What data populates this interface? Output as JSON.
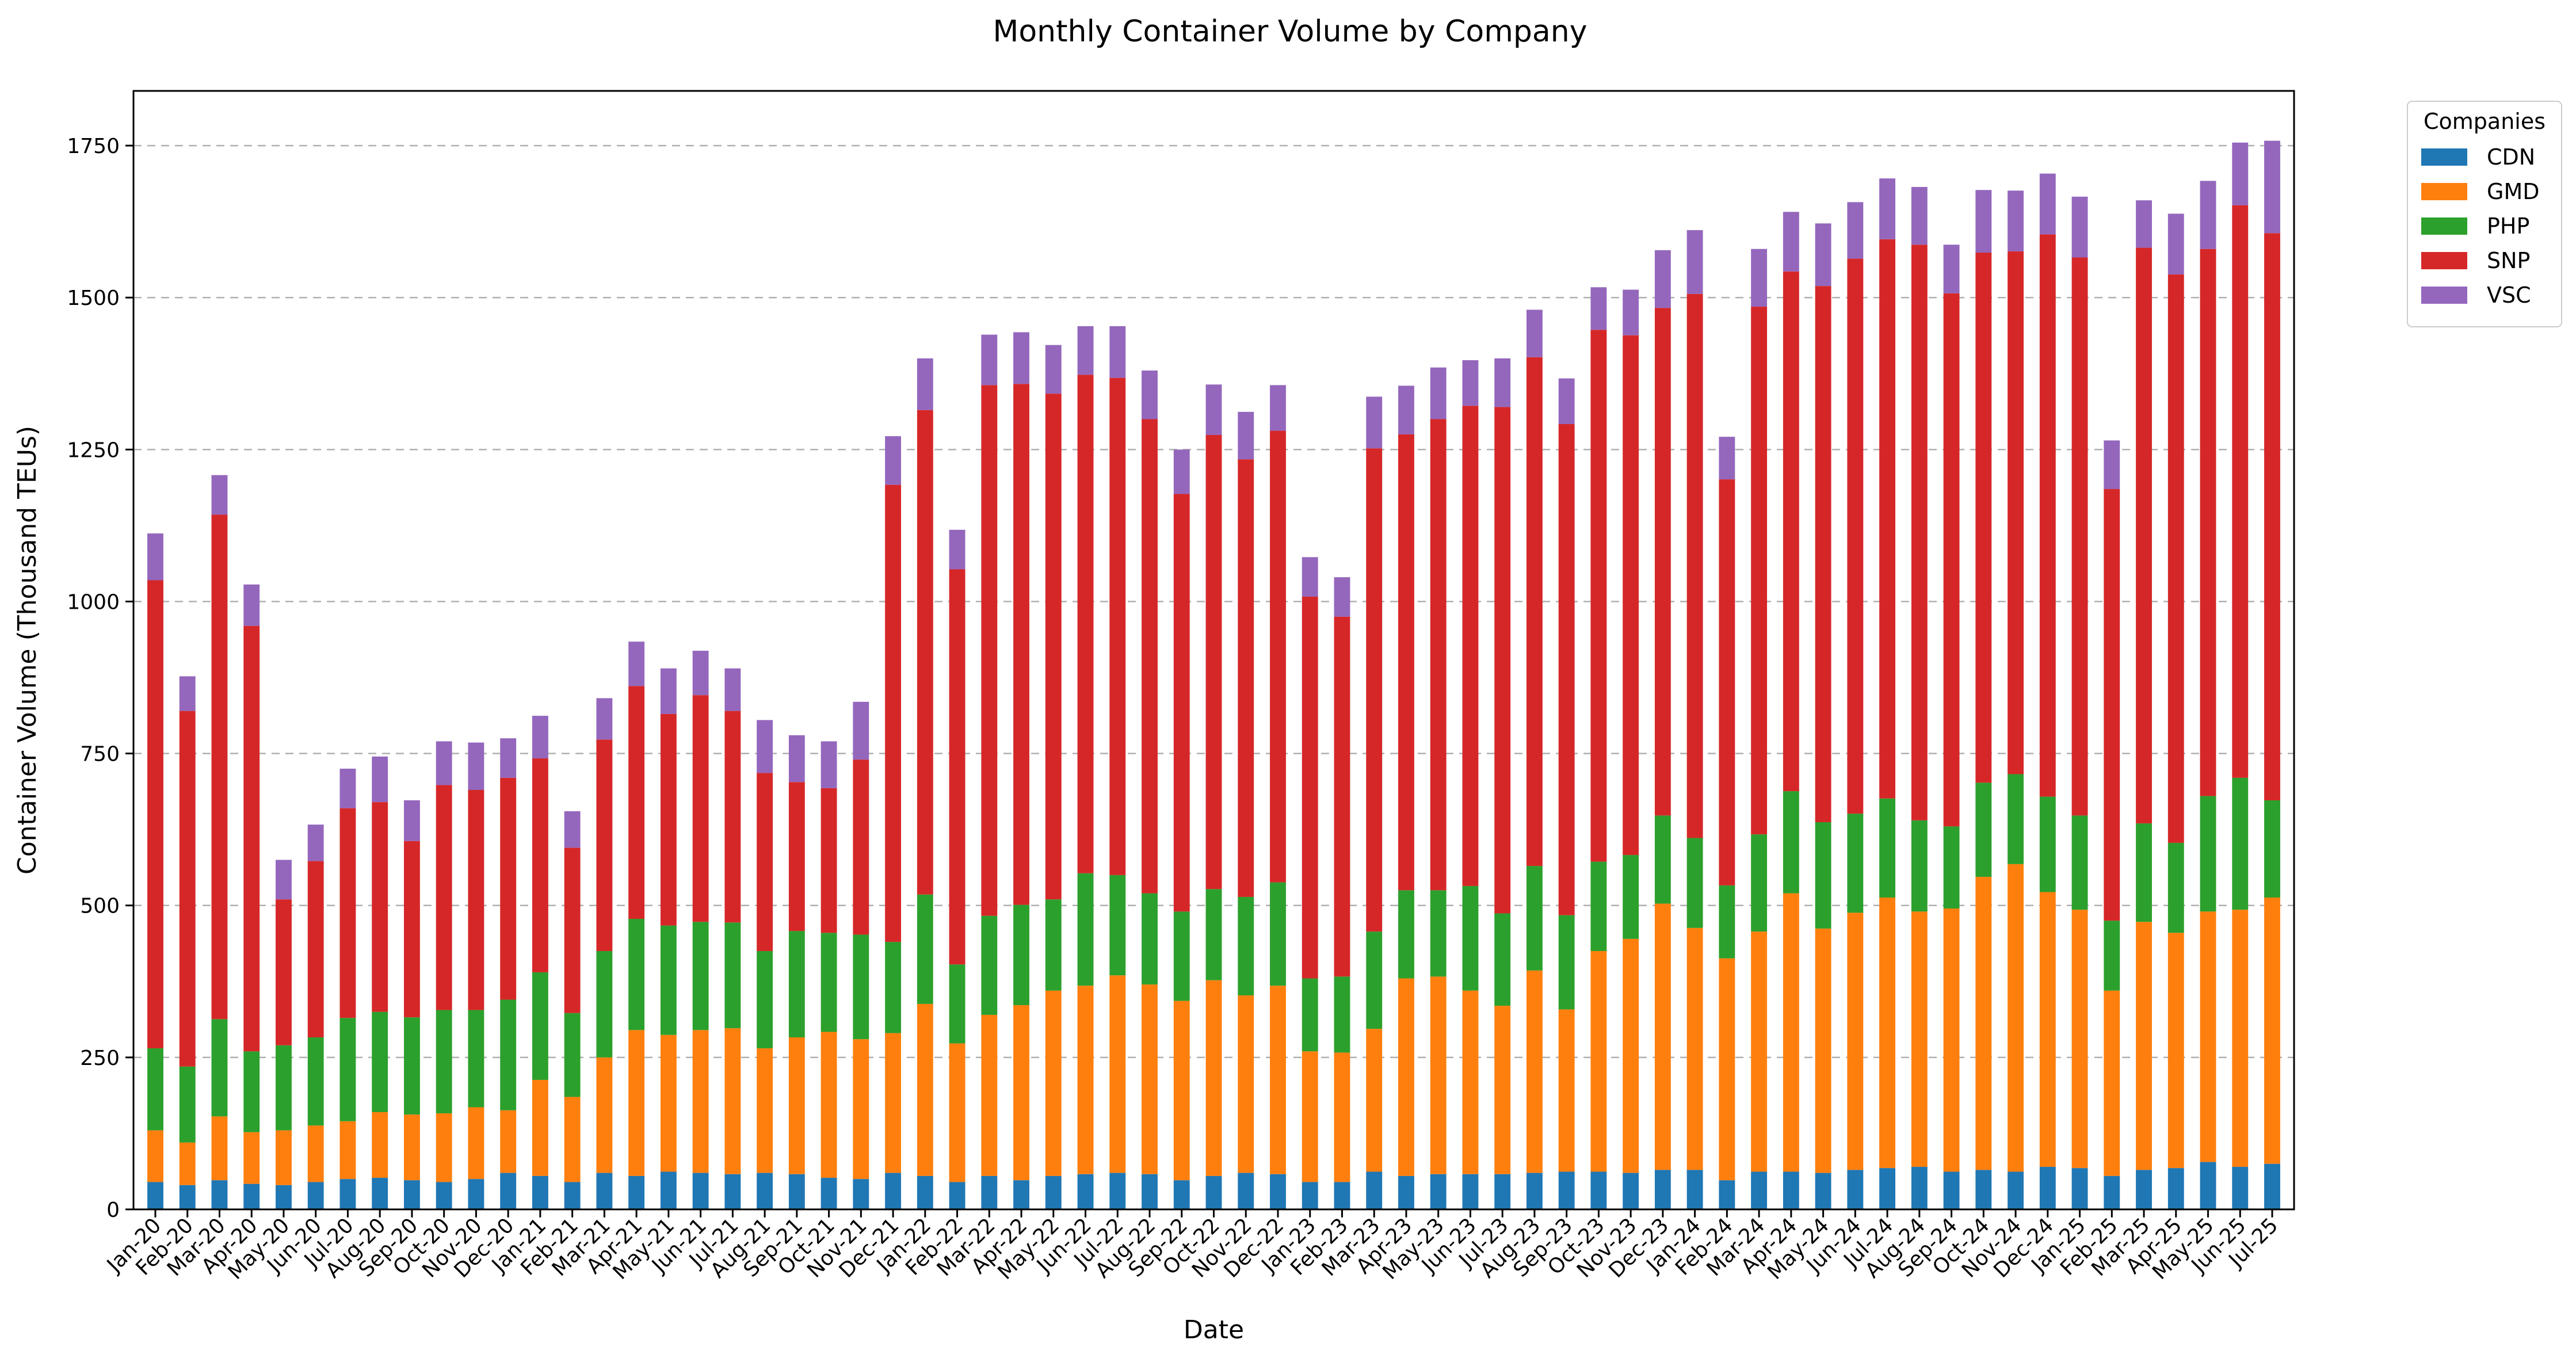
{
  "chart_data": {
    "type": "bar",
    "stacked": true,
    "title": "Monthly Container Volume by Company",
    "xlabel": "Date",
    "ylabel": "Container Volume (Thousand TEUs)",
    "ylim": [
      0,
      1840
    ],
    "yticks": [
      0,
      250,
      500,
      750,
      1000,
      1250,
      1500,
      1750
    ],
    "grid": "y-dashed",
    "legend": {
      "title": "Companies",
      "placement": "outside-top-right"
    },
    "categories": [
      "Jan-20",
      "Feb-20",
      "Mar-20",
      "Apr-20",
      "May-20",
      "Jun-20",
      "Jul-20",
      "Aug-20",
      "Sep-20",
      "Oct-20",
      "Nov-20",
      "Dec-20",
      "Jan-21",
      "Feb-21",
      "Mar-21",
      "Apr-21",
      "May-21",
      "Jun-21",
      "Jul-21",
      "Aug-21",
      "Sep-21",
      "Oct-21",
      "Nov-21",
      "Dec-21",
      "Jan-22",
      "Feb-22",
      "Mar-22",
      "Apr-22",
      "May-22",
      "Jun-22",
      "Jul-22",
      "Aug-22",
      "Sep-22",
      "Oct-22",
      "Nov-22",
      "Dec-22",
      "Jan-23",
      "Feb-23",
      "Mar-23",
      "Apr-23",
      "May-23",
      "Jun-23",
      "Jul-23",
      "Aug-23",
      "Sep-23",
      "Oct-23",
      "Nov-23",
      "Dec-23",
      "Jan-24",
      "Feb-24",
      "Mar-24",
      "Apr-24",
      "May-24",
      "Jun-24",
      "Jul-24",
      "Aug-24",
      "Sep-24",
      "Oct-24",
      "Nov-24",
      "Dec-24",
      "Jan-25",
      "Feb-25",
      "Mar-25",
      "Apr-25",
      "May-25",
      "Jun-25",
      "Jul-25"
    ],
    "series": [
      {
        "name": "CDN",
        "color": "#1f77b4",
        "values": [
          45,
          40,
          48,
          42,
          40,
          45,
          50,
          52,
          48,
          45,
          50,
          60,
          55,
          45,
          60,
          55,
          62,
          60,
          58,
          60,
          58,
          52,
          50,
          60,
          55,
          45,
          55,
          48,
          55,
          58,
          60,
          58,
          48,
          55,
          60,
          58,
          45,
          45,
          62,
          55,
          58,
          58,
          58,
          60,
          62,
          62,
          60,
          65,
          65,
          48,
          62,
          62,
          60,
          65,
          68,
          70,
          62,
          65,
          62,
          70,
          68,
          55,
          65,
          68,
          78,
          70,
          75
        ]
      },
      {
        "name": "GMD",
        "color": "#ff7f0e",
        "values": [
          85,
          70,
          105,
          85,
          90,
          93,
          95,
          108,
          108,
          113,
          118,
          103,
          158,
          140,
          190,
          240,
          225,
          235,
          240,
          205,
          225,
          240,
          230,
          230,
          283,
          228,
          265,
          288,
          305,
          310,
          325,
          312,
          295,
          322,
          292,
          310,
          215,
          213,
          235,
          325,
          325,
          302,
          277,
          333,
          267,
          363,
          385,
          438,
          398,
          365,
          395,
          458,
          402,
          423,
          445,
          420,
          433,
          482,
          506,
          452,
          425,
          305,
          408,
          387,
          412,
          423,
          438
        ]
      },
      {
        "name": "PHP",
        "color": "#2ca02c",
        "values": [
          135,
          125,
          160,
          133,
          140,
          145,
          170,
          165,
          160,
          170,
          160,
          182,
          177,
          138,
          175,
          183,
          180,
          178,
          174,
          160,
          175,
          163,
          172,
          150,
          180,
          130,
          163,
          165,
          150,
          185,
          165,
          150,
          147,
          150,
          162,
          170,
          120,
          125,
          160,
          145,
          142,
          172,
          152,
          172,
          155,
          147,
          138,
          145,
          148,
          120,
          160,
          168,
          175,
          163,
          163,
          150,
          135,
          155,
          148,
          157,
          155,
          115,
          162,
          148,
          190,
          217,
          160
        ]
      },
      {
        "name": "SNP",
        "color": "#d62728",
        "values": [
          770,
          585,
          830,
          700,
          240,
          290,
          345,
          345,
          290,
          370,
          362,
          365,
          352,
          272,
          348,
          383,
          348,
          373,
          348,
          293,
          245,
          238,
          288,
          752,
          797,
          650,
          873,
          857,
          832,
          820,
          818,
          780,
          687,
          747,
          720,
          743,
          628,
          592,
          795,
          750,
          775,
          790,
          833,
          837,
          808,
          875,
          855,
          835,
          895,
          668,
          868,
          855,
          882,
          913,
          920,
          947,
          877,
          872,
          860,
          925,
          918,
          710,
          947,
          935,
          900,
          942,
          933
        ]
      },
      {
        "name": "VSC",
        "color": "#9467bd",
        "values": [
          77,
          57,
          65,
          68,
          65,
          60,
          65,
          75,
          67,
          72,
          78,
          65,
          70,
          60,
          68,
          73,
          75,
          73,
          70,
          87,
          77,
          77,
          95,
          80,
          85,
          65,
          83,
          85,
          80,
          80,
          85,
          80,
          73,
          83,
          78,
          75,
          65,
          65,
          85,
          80,
          85,
          75,
          80,
          78,
          75,
          70,
          75,
          95,
          105,
          70,
          95,
          98,
          103,
          93,
          100,
          95,
          80,
          103,
          100,
          100,
          100,
          80,
          78,
          100,
          112,
          103,
          152
        ]
      }
    ]
  }
}
